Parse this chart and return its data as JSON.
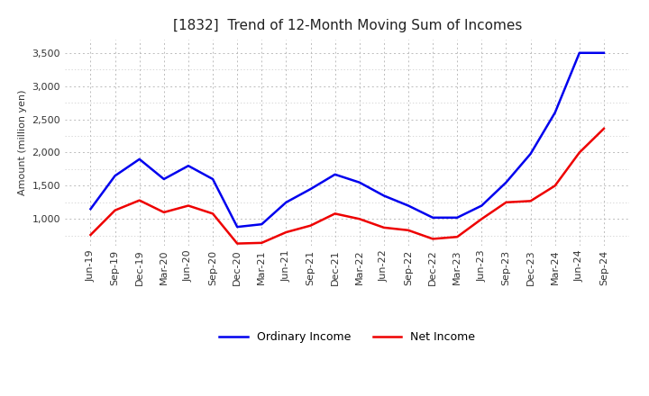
{
  "title": "[1832]  Trend of 12-Month Moving Sum of Incomes",
  "ylabel": "Amount (million yen)",
  "ylim": [
    600,
    3700
  ],
  "yticks": [
    1000,
    1500,
    2000,
    2500,
    3000,
    3500
  ],
  "ytick_labels": [
    "1,000",
    "1,500",
    "2,000",
    "2,500",
    "3,000",
    "3,500"
  ],
  "labels": [
    "Jun-19",
    "Sep-19",
    "Dec-19",
    "Mar-20",
    "Jun-20",
    "Sep-20",
    "Dec-20",
    "Mar-21",
    "Jun-21",
    "Sep-21",
    "Dec-21",
    "Mar-22",
    "Jun-22",
    "Sep-22",
    "Dec-22",
    "Mar-23",
    "Jun-23",
    "Sep-23",
    "Dec-23",
    "Mar-24",
    "Jun-24",
    "Sep-24"
  ],
  "ordinary_income": [
    1150,
    1650,
    1900,
    1600,
    1800,
    1600,
    880,
    920,
    1250,
    1450,
    1670,
    1550,
    1350,
    1200,
    1020,
    1020,
    1200,
    1550,
    1980,
    2600,
    3500,
    3500
  ],
  "net_income": [
    760,
    1130,
    1280,
    1100,
    1200,
    1080,
    630,
    640,
    800,
    900,
    1080,
    1000,
    870,
    830,
    700,
    730,
    1000,
    1250,
    1270,
    1500,
    2000,
    2360
  ],
  "ordinary_color": "#0000ee",
  "net_color": "#ee0000",
  "line_width": 1.8,
  "background_color": "#ffffff",
  "grid_color": "#bbbbbb",
  "title_fontsize": 11,
  "axis_label_fontsize": 8,
  "tick_fontsize": 8,
  "legend_labels": [
    "Ordinary Income",
    "Net Income"
  ],
  "legend_fontsize": 9
}
